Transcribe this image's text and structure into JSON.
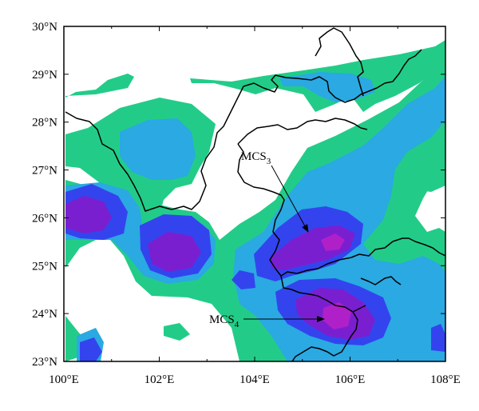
{
  "map": {
    "lon_range": [
      100,
      108
    ],
    "lat_range": [
      23,
      30
    ],
    "x_ticks": [
      "100°E",
      "102°E",
      "104°E",
      "106°E",
      "108°E"
    ],
    "y_ticks": [
      "23°N",
      "24°N",
      "25°N",
      "26°N",
      "27°N",
      "28°N",
      "29°N",
      "30°N"
    ],
    "colors": {
      "level1": "#22cc88",
      "level2": "#2aa9e2",
      "level3": "#3344ee",
      "level4": "#7a1fd0",
      "level5": "#b020c8",
      "border": "#000000"
    },
    "annotations": [
      {
        "label": "MCS",
        "subscript": "3",
        "text_lon": 104.0,
        "text_lat": 26.95,
        "arrow_lon": 105.1,
        "arrow_lat": 25.65
      },
      {
        "label": "MCS",
        "subscript": "4",
        "text_lon": 103.6,
        "text_lat": 23.85,
        "arrow_lon": 105.5,
        "arrow_lat": 23.85
      }
    ]
  }
}
